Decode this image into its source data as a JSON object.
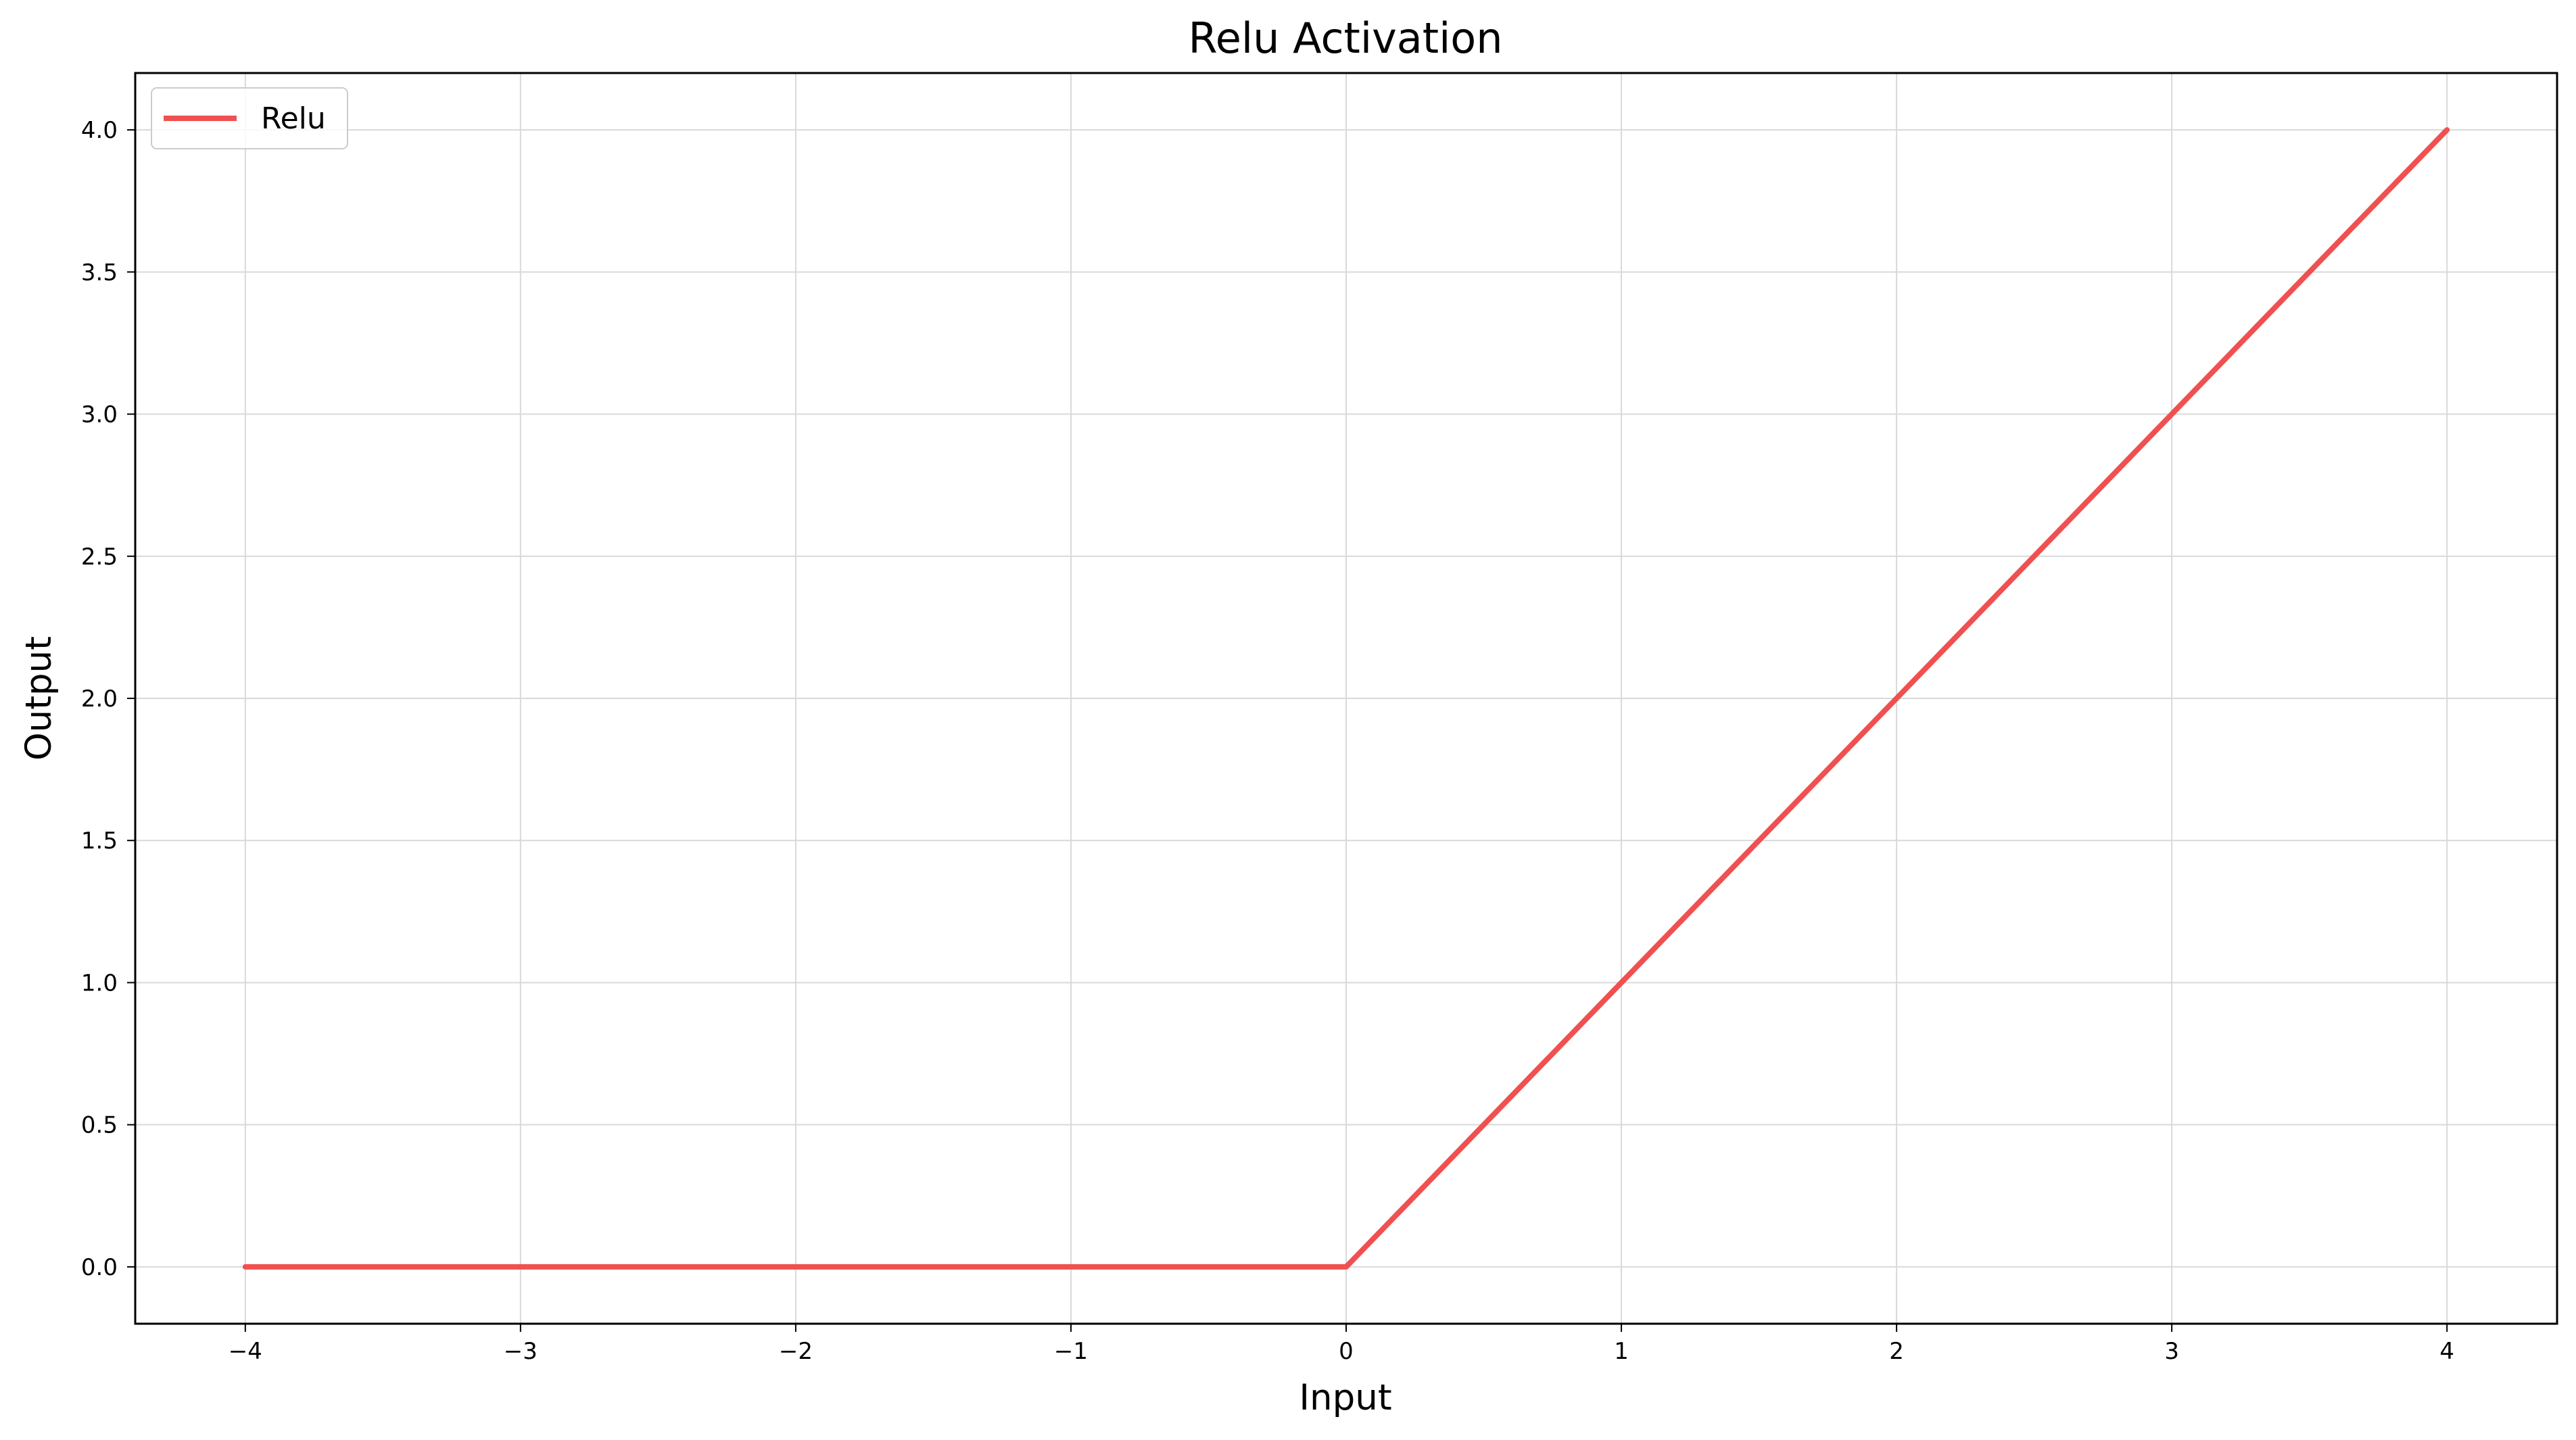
{
  "chart_data": {
    "type": "line",
    "title": "Relu Activation",
    "xlabel": "Input",
    "ylabel": "Output",
    "xlim": [
      -4.4,
      4.4
    ],
    "ylim": [
      -0.2,
      4.2
    ],
    "xticks": [
      -4,
      -3,
      -2,
      -1,
      0,
      1,
      2,
      3,
      4
    ],
    "xtick_labels": [
      "−4",
      "−3",
      "−2",
      "−1",
      "0",
      "1",
      "2",
      "3",
      "4"
    ],
    "yticks": [
      0.0,
      0.5,
      1.0,
      1.5,
      2.0,
      2.5,
      3.0,
      3.5,
      4.0
    ],
    "ytick_labels": [
      "0.0",
      "0.5",
      "1.0",
      "1.5",
      "2.0",
      "2.5",
      "3.0",
      "3.5",
      "4.0"
    ],
    "grid": true,
    "legend_position": "top-left",
    "series": [
      {
        "name": "Relu",
        "color": "#f05050",
        "x": [
          -4,
          -3,
          -2,
          -1,
          0,
          1,
          2,
          3,
          4
        ],
        "y": [
          0,
          0,
          0,
          0,
          0,
          1,
          2,
          3,
          4
        ]
      }
    ]
  }
}
